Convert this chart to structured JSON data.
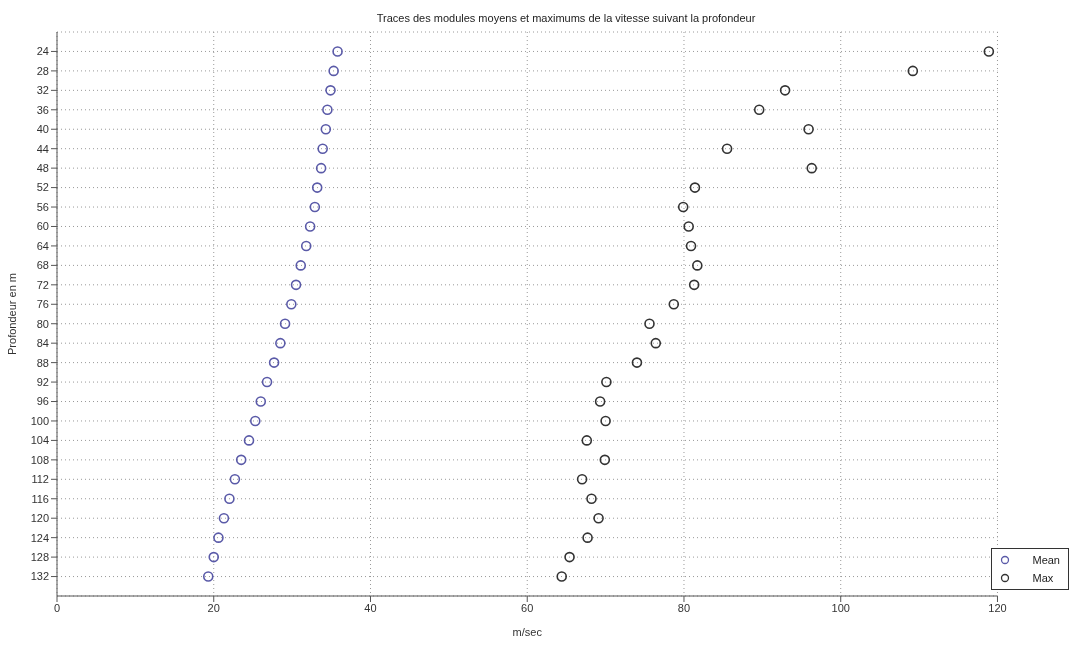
{
  "chart_data": {
    "type": "scatter",
    "title": "Traces des modules moyens et maximums de la vitesse suivant la profondeur",
    "xlabel": "m/sec",
    "ylabel": "Profondeur en m",
    "series": [
      {
        "name": "Mean",
        "color": "#5a5aa8",
        "x": [
          35.8,
          35.3,
          34.9,
          34.5,
          34.3,
          33.9,
          33.7,
          33.2,
          32.9,
          32.3,
          31.8,
          31.1,
          30.5,
          29.9,
          29.1,
          28.5,
          27.7,
          26.8,
          26.0,
          25.3,
          24.5,
          23.5,
          22.7,
          22.0,
          21.3,
          20.6,
          20.0,
          19.3
        ],
        "values": [
          24,
          28,
          32,
          36,
          40,
          44,
          48,
          52,
          56,
          60,
          64,
          68,
          72,
          76,
          80,
          84,
          88,
          92,
          96,
          100,
          104,
          108,
          112,
          116,
          120,
          124,
          128,
          132
        ]
      },
      {
        "name": "Max",
        "color": "#333333",
        "x": [
          118.9,
          109.2,
          92.9,
          89.6,
          95.9,
          85.5,
          96.3,
          81.4,
          79.9,
          80.6,
          80.9,
          81.7,
          81.3,
          78.7,
          75.6,
          76.4,
          74.0,
          70.1,
          69.3,
          70.0,
          67.6,
          69.9,
          67.0,
          68.2,
          69.1,
          67.7,
          65.4,
          64.4
        ],
        "values": [
          24,
          28,
          32,
          36,
          40,
          44,
          48,
          52,
          56,
          60,
          64,
          68,
          72,
          76,
          80,
          84,
          88,
          92,
          96,
          100,
          104,
          108,
          112,
          116,
          120,
          124,
          128,
          132
        ]
      }
    ],
    "xlim": [
      0,
      120
    ],
    "xticks": [
      0,
      20,
      40,
      60,
      80,
      100,
      120
    ],
    "ylim": [
      136,
      20
    ],
    "yticks": [
      24,
      28,
      32,
      36,
      40,
      44,
      48,
      52,
      56,
      60,
      64,
      68,
      72,
      76,
      80,
      84,
      88,
      92,
      96,
      100,
      104,
      108,
      112,
      116,
      120,
      124,
      128,
      132
    ],
    "grid": true,
    "legend": "bottom right",
    "marker": "circle"
  }
}
